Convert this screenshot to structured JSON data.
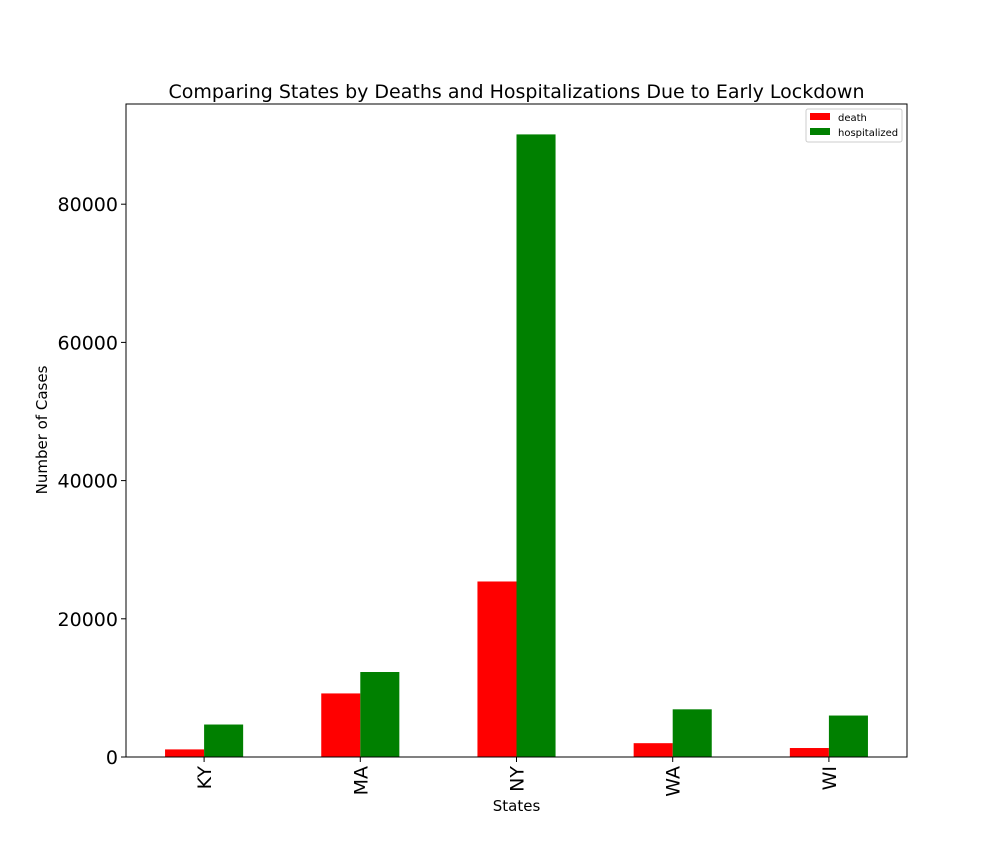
{
  "chart_data": {
    "type": "bar",
    "title": "Comparing States by Deaths and Hospitalizations Due to Early Lockdown",
    "xlabel": "States",
    "ylabel": "Number of Cases",
    "categories": [
      "KY",
      "MA",
      "NY",
      "WA",
      "WI"
    ],
    "series": [
      {
        "name": "death",
        "color": "#ff0000",
        "values": [
          1100,
          9200,
          25400,
          2000,
          1300
        ]
      },
      {
        "name": "hospitalized",
        "color": "#008000",
        "values": [
          4700,
          12300,
          90100,
          6900,
          6000
        ]
      }
    ],
    "ylim": [
      0,
      94500
    ],
    "yticks": [
      0,
      20000,
      40000,
      60000,
      80000
    ],
    "ytick_labels": [
      "0",
      "20000",
      "40000",
      "60000",
      "80000"
    ],
    "grid": false,
    "legend_position": "top-right"
  }
}
